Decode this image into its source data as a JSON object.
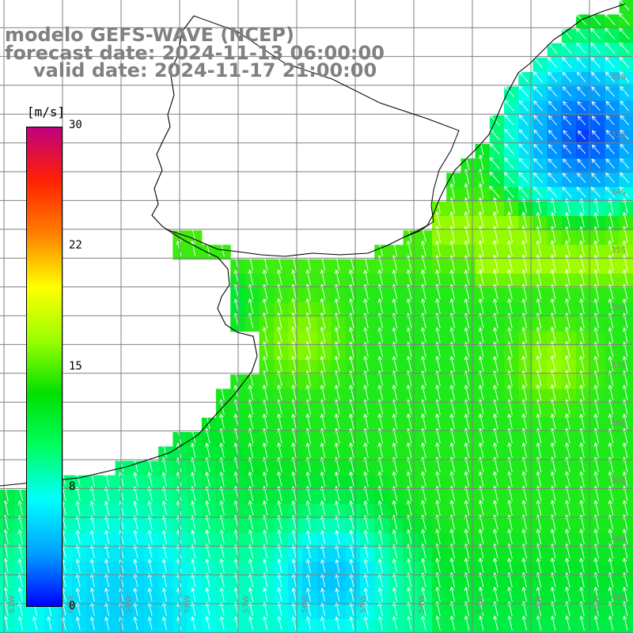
{
  "title": {
    "model": "modelo GEFS-WAVE (NCEP)",
    "forecast": "forecast date: 2024-11-13 06:00:00",
    "valid": "valid date: 2024-11-17 21:00:00"
  },
  "colorbar": {
    "unit": "[m/s]",
    "ticks": [
      "30",
      "22",
      "15",
      "8",
      "0"
    ],
    "gradient": [
      "#0000ff",
      "#00a0ff",
      "#00ffff",
      "#00ff60",
      "#00e000",
      "#9cff00",
      "#ffff00",
      "#ff8000",
      "#ff2000",
      "#c00080"
    ]
  },
  "lat_labels": [
    "32S",
    "33S",
    "34S",
    "35S",
    "36S",
    "37S",
    "38S",
    "39S",
    "40S",
    "41S"
  ],
  "lon_labels": [
    "61W",
    "60W",
    "59W",
    "58W",
    "57W",
    "56W",
    "55W",
    "54W",
    "53W",
    "52W",
    "51W"
  ],
  "colors": {
    "land": "#ffffff",
    "grid": "#808080",
    "coast": "#000000",
    "arrow": "#ffffff"
  }
}
